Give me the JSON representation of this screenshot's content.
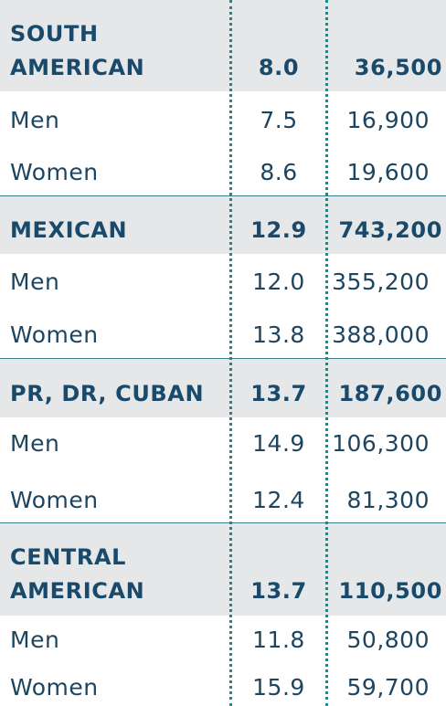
{
  "table": {
    "groups": [
      {
        "label_lines": [
          "SOUTH",
          "AMERICAN"
        ],
        "rate": "8.0",
        "count": "36,500",
        "rows": [
          {
            "label": "Men",
            "rate": "7.5",
            "count": "16,900"
          },
          {
            "label": "Women",
            "rate": "8.6",
            "count": "19,600"
          }
        ]
      },
      {
        "label_lines": [
          "MEXICAN"
        ],
        "rate": "12.9",
        "count": "743,200",
        "rows": [
          {
            "label": "Men",
            "rate": "12.0",
            "count": "355,200"
          },
          {
            "label": "Women",
            "rate": "13.8",
            "count": "388,000"
          }
        ]
      },
      {
        "label_lines": [
          "PR, DR, CUBAN"
        ],
        "rate": "13.7",
        "count": "187,600",
        "rows": [
          {
            "label": "Men",
            "rate": "14.9",
            "count": "106,300"
          },
          {
            "label": "Women",
            "rate": "12.4",
            "count": "81,300"
          }
        ]
      },
      {
        "label_lines": [
          "CENTRAL",
          "AMERICAN"
        ],
        "rate": "13.7",
        "count": "110,500",
        "rows": [
          {
            "label": "Men",
            "rate": "11.8",
            "count": "50,800"
          },
          {
            "label": "Women",
            "rate": "15.9",
            "count": "59,700"
          }
        ]
      }
    ]
  },
  "colors": {
    "group_background": "#e6e7e9",
    "group_text": "#1a4a6b",
    "row_text": "#1e4560",
    "divider": "#1b8a8a",
    "rule": "#3a7a8a"
  }
}
